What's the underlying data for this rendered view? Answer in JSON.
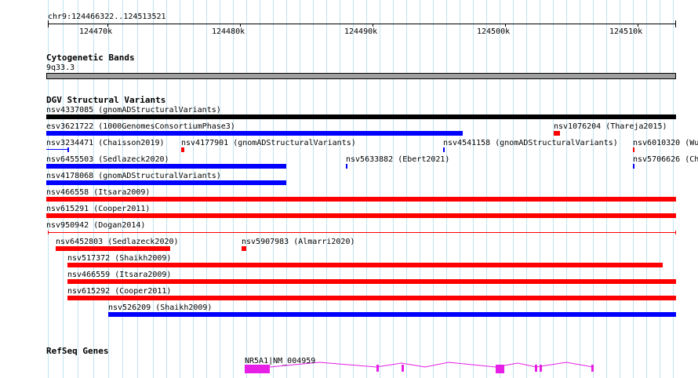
{
  "ruler": {
    "position_label": "chr9:124466322..124513521",
    "ticks": [
      "124470k",
      "124480k",
      "124490k",
      "124500k",
      "124510k"
    ]
  },
  "tracks": {
    "cytogenetic": {
      "title": "Cytogenetic Bands",
      "band": "9q33.3"
    },
    "dgv": {
      "title": "DGV Structural Variants",
      "colors": {
        "gain": "#0000ff",
        "loss": "#ff0000",
        "both": "#000000"
      },
      "features": [
        {
          "id": "nsv4337085",
          "label": "nsv4337085 (gnomADStructuralVariants)"
        },
        {
          "id": "esv3621722",
          "label": "esv3621722 (1000GenomesConsortiumPhase3)"
        },
        {
          "id": "nsv1076204",
          "label": "nsv1076204 (Thareja2015)"
        },
        {
          "id": "nsv3234471",
          "label": "nsv3234471 (Chaisson2019)"
        },
        {
          "id": "nsv4177901",
          "label": "nsv4177901 (gnomADStructuralVariants)"
        },
        {
          "id": "nsv4541158",
          "label": "nsv4541158 (gnomADStructuralVariants)"
        },
        {
          "id": "nsv6010320",
          "label": "nsv6010320 (Wu"
        },
        {
          "id": "nsv6455503",
          "label": "nsv6455503 (Sedlazeck2020)"
        },
        {
          "id": "nsv5633882",
          "label": "nsv5633882 (Ebert2021)"
        },
        {
          "id": "nsv5706626",
          "label": "nsv5706626 (Ch"
        },
        {
          "id": "nsv4178068",
          "label": "nsv4178068 (gnomADStructuralVariants)"
        },
        {
          "id": "nsv466558",
          "label": "nsv466558 (Itsara2009)"
        },
        {
          "id": "nsv615291",
          "label": "nsv615291 (Cooper2011)"
        },
        {
          "id": "nsv950942",
          "label": "nsv950942 (Dogan2014)"
        },
        {
          "id": "nsv6452803",
          "label": "nsv6452803 (Sedlazeck2020)"
        },
        {
          "id": "nsv5907983",
          "label": "nsv5907983 (Almarri2020)"
        },
        {
          "id": "nsv517372",
          "label": "nsv517372 (Shaikh2009)"
        },
        {
          "id": "nsv466559",
          "label": "nsv466559 (Itsara2009)"
        },
        {
          "id": "nsv615292",
          "label": "nsv615292 (Cooper2011)"
        },
        {
          "id": "nsv526209",
          "label": "nsv526209 (Shaikh2009)"
        }
      ]
    },
    "refseq": {
      "title": "RefSeq Genes",
      "color": "#e61ee6",
      "gene_label": "NR5A1|NM_004959"
    }
  }
}
